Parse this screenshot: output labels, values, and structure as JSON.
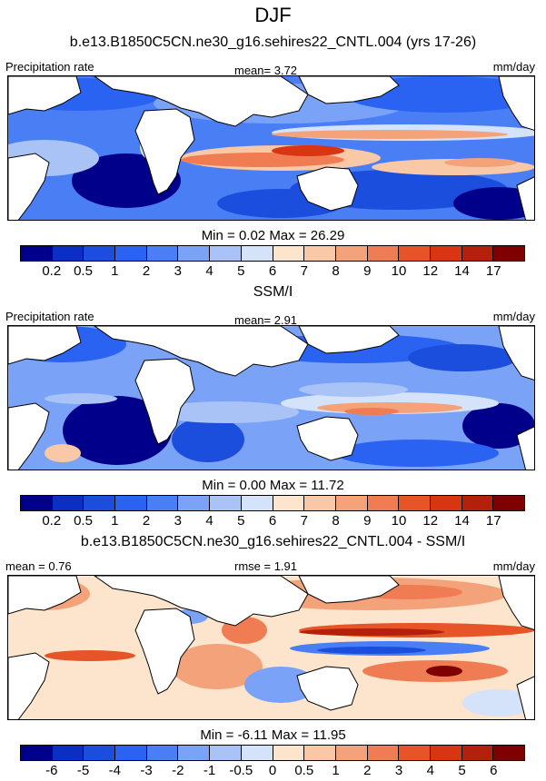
{
  "season": "DJF",
  "panels": [
    {
      "title": "b.e13.B1850C5CN.ne30_g16.sehires22_CNTL.004 (yrs 17-26)",
      "left_label": "Precipitation rate",
      "center_label": "mean=   3.72",
      "right_label": "mm/day",
      "minmax": "Min =   0.02 Max =  26.29",
      "colorbar_labels": [
        "0.2",
        "0.5",
        "1",
        "2",
        "3",
        "4",
        "5",
        "6",
        "7",
        "8",
        "9",
        "10",
        "12",
        "14",
        "17"
      ]
    },
    {
      "title": "SSM/I",
      "left_label": "Precipitation rate",
      "center_label": "mean=   2.91",
      "right_label": "mm/day",
      "minmax": "Min =   0.00 Max =  11.72",
      "colorbar_labels": [
        "0.2",
        "0.5",
        "1",
        "2",
        "3",
        "4",
        "5",
        "6",
        "7",
        "8",
        "9",
        "10",
        "12",
        "14",
        "17"
      ]
    },
    {
      "title": "b.e13.B1850C5CN.ne30_g16.sehires22_CNTL.004 - SSM/I",
      "left_label": "mean =   0.76",
      "center_label": "rmse =   1.91",
      "right_label": "mm/day",
      "minmax": "Min =  -6.11 Max =  11.95",
      "colorbar_labels": [
        "-6",
        "-5",
        "-4",
        "-3",
        "-2",
        "-1",
        "-0.5",
        "0",
        "0.5",
        "1",
        "2",
        "3",
        "4",
        "5",
        "6"
      ]
    }
  ],
  "colorbar_colors": [
    "#00008b",
    "#0a2fc2",
    "#1c4ede",
    "#2a62f2",
    "#4a7ef5",
    "#7aa2f7",
    "#a9c3f6",
    "#d4e2fa",
    "#fde4cc",
    "#f9c8a6",
    "#f4a27a",
    "#ef7c52",
    "#e65428",
    "#d83512",
    "#b3200b",
    "#7e0000"
  ],
  "chart_data": [
    {
      "type": "heatmap",
      "title": "b.e13.B1850C5CN.ne30_g16.sehires22_CNTL.004 (yrs 17-26)",
      "variable": "Precipitation rate",
      "units": "mm/day",
      "mean": 3.72,
      "min": 0.02,
      "max": 26.29,
      "levels": [
        0.2,
        0.5,
        1,
        2,
        3,
        4,
        5,
        6,
        7,
        8,
        9,
        10,
        12,
        14,
        17
      ]
    },
    {
      "type": "heatmap",
      "title": "SSM/I",
      "variable": "Precipitation rate",
      "units": "mm/day",
      "mean": 2.91,
      "min": 0.0,
      "max": 11.72,
      "levels": [
        0.2,
        0.5,
        1,
        2,
        3,
        4,
        5,
        6,
        7,
        8,
        9,
        10,
        12,
        14,
        17
      ]
    },
    {
      "type": "heatmap",
      "title": "b.e13.B1850C5CN.ne30_g16.sehires22_CNTL.004 - SSM/I",
      "units": "mm/day",
      "mean": 0.76,
      "rmse": 1.91,
      "min": -6.11,
      "max": 11.95,
      "levels": [
        -6,
        -5,
        -4,
        -3,
        -2,
        -1,
        -0.5,
        0,
        0.5,
        1,
        2,
        3,
        4,
        5,
        6
      ]
    }
  ]
}
